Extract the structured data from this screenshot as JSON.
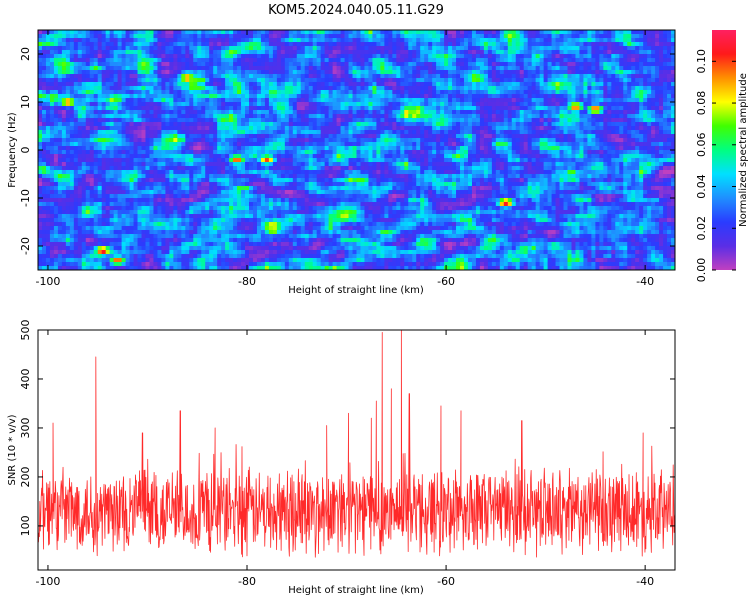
{
  "title": "KOM5.2024.040.05.11.G29",
  "chart_data": [
    {
      "type": "heatmap",
      "xlabel": "Height of straight line (km)",
      "ylabel": "Frequency (Hz)",
      "xlim": [
        -101,
        -37
      ],
      "ylim": [
        -25,
        25
      ],
      "x_ticks": [
        -100,
        -80,
        -60,
        -40
      ],
      "y_ticks": [
        20,
        10,
        0,
        -10,
        -20
      ],
      "colorbar": {
        "label": "Normalized spectral amplitude",
        "range": [
          0,
          0.115
        ],
        "ticks": [
          "0.00",
          "0.02",
          "0.04",
          "0.06",
          "0.08",
          "0.10"
        ],
        "colors": [
          "#c040c0",
          "#5a2ee6",
          "#2a3cff",
          "#1f8fff",
          "#00e0ff",
          "#00ff80",
          "#40ff00",
          "#ffff00",
          "#ff9000",
          "#ff1a1a",
          "#ff2060"
        ]
      },
      "notable_peaks": [
        {
          "x": -94.5,
          "y": -21,
          "value": 0.11
        },
        {
          "x": -54,
          "y": -11,
          "value": 0.11
        },
        {
          "x": -81,
          "y": -2,
          "value": 0.1
        },
        {
          "x": -78,
          "y": -2,
          "value": 0.1
        },
        {
          "x": -98,
          "y": 10,
          "value": 0.1
        },
        {
          "x": -86,
          "y": 15,
          "value": 0.1
        },
        {
          "x": -47,
          "y": 9,
          "value": 0.1
        },
        {
          "x": -45,
          "y": 8.5,
          "value": 0.1
        },
        {
          "x": -93,
          "y": -23,
          "value": 0.1
        }
      ]
    },
    {
      "type": "line",
      "xlabel": "Height of straight line (km)",
      "ylabel": "SNR (10 * v/v)",
      "xlim": [
        -101,
        -37
      ],
      "ylim": [
        10,
        500
      ],
      "x_ticks": [
        -100,
        -80,
        -60,
        -40
      ],
      "y_ticks": [
        100,
        200,
        300,
        400,
        500
      ],
      "line_color": "#ff2a2a",
      "baseline_mean": 130,
      "baseline_spread": 75,
      "peaks": [
        {
          "x": -95.2,
          "y": 445
        },
        {
          "x": -66.4,
          "y": 495
        },
        {
          "x": -64.5,
          "y": 500
        },
        {
          "x": -65.5,
          "y": 380
        },
        {
          "x": -63.7,
          "y": 370
        },
        {
          "x": -67.0,
          "y": 355
        },
        {
          "x": -60.5,
          "y": 345
        },
        {
          "x": -86.7,
          "y": 335
        },
        {
          "x": -58.5,
          "y": 335
        },
        {
          "x": -67.5,
          "y": 320
        },
        {
          "x": -69.8,
          "y": 330
        },
        {
          "x": -99.5,
          "y": 310
        },
        {
          "x": -72.0,
          "y": 305
        },
        {
          "x": -83.2,
          "y": 300
        },
        {
          "x": -52.4,
          "y": 315
        },
        {
          "x": -90.5,
          "y": 290
        },
        {
          "x": -40.2,
          "y": 290
        },
        {
          "x": -36.8,
          "y": 245
        }
      ]
    }
  ]
}
